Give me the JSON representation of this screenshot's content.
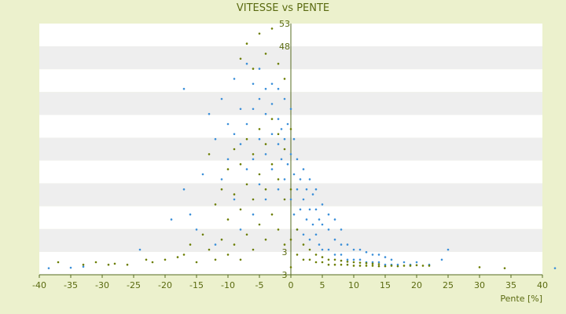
{
  "chart_data": {
    "type": "scatter",
    "title": "VITESSE vs PENTE",
    "xlabel": "Pente [%]",
    "ylabel": "",
    "xlim": [
      -40,
      40
    ],
    "ylim": [
      3,
      53
    ],
    "x_ticks": [
      "-40",
      "-35",
      "-30",
      "-25",
      "-20",
      "-15",
      "-10",
      "-5",
      "0",
      "5",
      "10",
      "15",
      "20",
      "25",
      "30",
      "35",
      "40"
    ],
    "y_tick_labels": [
      "53",
      "48",
      "3",
      "3"
    ],
    "grid": true,
    "legend": "none",
    "colors": {
      "series_a": "#3b8fd9",
      "series_b": "#6b7d00",
      "band_light": "#ffffff",
      "band_dark": "#eeeeee",
      "text": "#5a6a10",
      "axis": "#556b1f"
    },
    "series": [
      {
        "color_key": "series_a",
        "points": [
          [
            -38.5,
            4.3
          ],
          [
            -35,
            4.4
          ],
          [
            -33,
            4.6
          ],
          [
            -24,
            8
          ],
          [
            -19,
            14
          ],
          [
            -17,
            20
          ],
          [
            -17,
            40
          ],
          [
            -16,
            15
          ],
          [
            -15,
            12
          ],
          [
            -14,
            23
          ],
          [
            -13,
            35
          ],
          [
            -12,
            9
          ],
          [
            -12,
            30
          ],
          [
            -11,
            22
          ],
          [
            -11,
            38
          ],
          [
            -10,
            26
          ],
          [
            -10,
            33
          ],
          [
            -9,
            18
          ],
          [
            -9,
            31
          ],
          [
            -9,
            42
          ],
          [
            -8,
            12
          ],
          [
            -8,
            29
          ],
          [
            -8,
            36
          ],
          [
            -7,
            24
          ],
          [
            -7,
            33
          ],
          [
            -7,
            45
          ],
          [
            -6,
            15
          ],
          [
            -6,
            26
          ],
          [
            -6,
            36
          ],
          [
            -6,
            41
          ],
          [
            -5,
            21
          ],
          [
            -5,
            30
          ],
          [
            -5,
            38
          ],
          [
            -5,
            44
          ],
          [
            -4,
            18
          ],
          [
            -4,
            27
          ],
          [
            -4,
            35
          ],
          [
            -4,
            40
          ],
          [
            -3,
            24
          ],
          [
            -3,
            31
          ],
          [
            -3,
            37
          ],
          [
            -3,
            41
          ],
          [
            -2,
            20
          ],
          [
            -2,
            29
          ],
          [
            -2,
            34
          ],
          [
            -2,
            40
          ],
          [
            -1.5,
            26
          ],
          [
            -1.5,
            32
          ],
          [
            -1,
            22
          ],
          [
            -1,
            30
          ],
          [
            -1,
            38
          ],
          [
            -0.5,
            25
          ],
          [
            -0.5,
            33
          ],
          [
            0,
            18
          ],
          [
            0,
            27
          ],
          [
            0,
            36
          ],
          [
            0.5,
            15
          ],
          [
            0.5,
            23
          ],
          [
            0.5,
            30
          ],
          [
            1,
            12
          ],
          [
            1,
            20
          ],
          [
            1,
            26
          ],
          [
            1.5,
            16
          ],
          [
            1.5,
            22
          ],
          [
            2,
            11
          ],
          [
            2,
            18
          ],
          [
            2,
            24
          ],
          [
            2.5,
            14
          ],
          [
            2.5,
            20
          ],
          [
            3,
            10
          ],
          [
            3,
            16
          ],
          [
            3,
            22
          ],
          [
            3.5,
            13
          ],
          [
            3.5,
            19
          ],
          [
            4,
            11
          ],
          [
            4,
            16
          ],
          [
            4,
            20
          ],
          [
            4.5,
            9
          ],
          [
            4.5,
            14
          ],
          [
            5,
            8
          ],
          [
            5,
            13
          ],
          [
            5,
            17
          ],
          [
            6,
            8
          ],
          [
            6,
            12
          ],
          [
            6,
            15
          ],
          [
            7,
            7
          ],
          [
            7,
            10
          ],
          [
            7,
            14
          ],
          [
            8,
            7
          ],
          [
            8,
            9
          ],
          [
            8,
            12
          ],
          [
            9,
            6
          ],
          [
            9,
            9
          ],
          [
            10,
            6
          ],
          [
            10,
            8
          ],
          [
            11,
            6
          ],
          [
            11,
            8
          ],
          [
            12,
            5.5
          ],
          [
            12,
            7.5
          ],
          [
            13,
            5.5
          ],
          [
            13,
            7
          ],
          [
            14,
            5.5
          ],
          [
            14,
            7
          ],
          [
            15,
            5
          ],
          [
            15,
            6.5
          ],
          [
            16,
            5
          ],
          [
            16,
            6
          ],
          [
            17,
            5
          ],
          [
            18,
            5.5
          ],
          [
            19,
            5
          ],
          [
            20,
            5.5
          ],
          [
            22,
            5
          ],
          [
            24,
            6
          ],
          [
            25,
            8
          ],
          [
            42,
            4.3
          ]
        ]
      },
      {
        "color_key": "series_b",
        "points": [
          [
            -37,
            5.5
          ],
          [
            -33,
            5
          ],
          [
            -31,
            5.5
          ],
          [
            -29,
            5
          ],
          [
            -28,
            5.2
          ],
          [
            -26,
            5
          ],
          [
            -23,
            6
          ],
          [
            -22,
            5.5
          ],
          [
            -20,
            6
          ],
          [
            -18,
            6.5
          ],
          [
            -17,
            7
          ],
          [
            -16,
            9
          ],
          [
            -15,
            5.5
          ],
          [
            -14,
            11
          ],
          [
            -13,
            8
          ],
          [
            -13,
            27
          ],
          [
            -12,
            6
          ],
          [
            -12,
            17
          ],
          [
            -11,
            10
          ],
          [
            -11,
            20
          ],
          [
            -10,
            7
          ],
          [
            -10,
            14
          ],
          [
            -10,
            24
          ],
          [
            -9,
            9
          ],
          [
            -9,
            19
          ],
          [
            -9,
            28
          ],
          [
            -8,
            6
          ],
          [
            -8,
            16
          ],
          [
            -8,
            25
          ],
          [
            -8,
            46
          ],
          [
            -7,
            11
          ],
          [
            -7,
            21
          ],
          [
            -7,
            30
          ],
          [
            -7,
            49
          ],
          [
            -6,
            8
          ],
          [
            -6,
            18
          ],
          [
            -6,
            27
          ],
          [
            -6,
            44
          ],
          [
            -5,
            13
          ],
          [
            -5,
            23
          ],
          [
            -5,
            32
          ],
          [
            -5,
            51
          ],
          [
            -4,
            10
          ],
          [
            -4,
            20
          ],
          [
            -4,
            29
          ],
          [
            -4,
            47
          ],
          [
            -3,
            15
          ],
          [
            -3,
            25
          ],
          [
            -3,
            34
          ],
          [
            -3,
            52
          ],
          [
            -2,
            12
          ],
          [
            -2,
            22
          ],
          [
            -2,
            31
          ],
          [
            -2,
            45
          ],
          [
            -1,
            9
          ],
          [
            -1,
            18
          ],
          [
            -1,
            28
          ],
          [
            -1,
            42
          ],
          [
            0,
            4.5
          ],
          [
            0,
            10
          ],
          [
            0,
            20
          ],
          [
            0,
            32
          ],
          [
            1,
            7
          ],
          [
            1,
            12
          ],
          [
            2,
            6
          ],
          [
            2,
            9
          ],
          [
            3,
            6
          ],
          [
            3,
            8
          ],
          [
            4,
            5.5
          ],
          [
            4,
            7
          ],
          [
            5,
            5.5
          ],
          [
            5,
            6.5
          ],
          [
            6,
            5
          ],
          [
            6,
            6
          ],
          [
            7,
            5
          ],
          [
            7,
            6
          ],
          [
            8,
            5
          ],
          [
            8,
            5.8
          ],
          [
            9,
            5
          ],
          [
            9,
            5.6
          ],
          [
            10,
            4.8
          ],
          [
            10,
            5.5
          ],
          [
            11,
            4.8
          ],
          [
            11,
            5.4
          ],
          [
            12,
            4.8
          ],
          [
            12,
            5.3
          ],
          [
            13,
            4.8
          ],
          [
            13,
            5.2
          ],
          [
            14,
            4.7
          ],
          [
            14,
            5.1
          ],
          [
            15,
            4.7
          ],
          [
            16,
            4.8
          ],
          [
            17,
            4.7
          ],
          [
            18,
            4.8
          ],
          [
            19,
            4.8
          ],
          [
            20,
            4.9
          ],
          [
            21,
            4.8
          ],
          [
            22,
            4.8
          ],
          [
            30,
            4.5
          ],
          [
            34,
            4.3
          ]
        ]
      }
    ]
  }
}
